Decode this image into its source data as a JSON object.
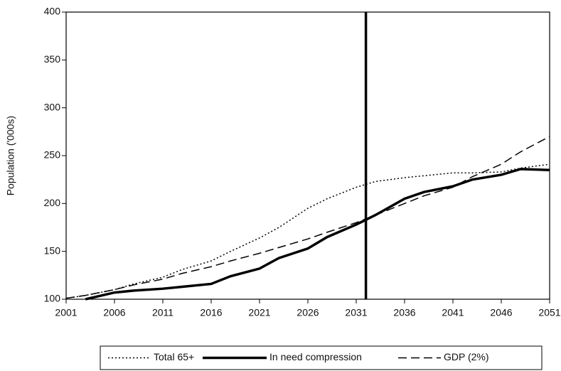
{
  "chart_data": {
    "type": "line",
    "y_label": "Population ('000s)",
    "x": [
      2001,
      2003,
      2006,
      2008,
      2011,
      2013,
      2016,
      2018,
      2021,
      2023,
      2026,
      2028,
      2031,
      2033,
      2036,
      2038,
      2041,
      2043,
      2046,
      2048,
      2051
    ],
    "series": [
      {
        "name": "Total 65+",
        "color": "#000000",
        "style": "dotted",
        "width": 1.5,
        "values": [
          101,
          104,
          110,
          116,
          123,
          131,
          140,
          150,
          164,
          175,
          195,
          205,
          217,
          223,
          227,
          229,
          232,
          232,
          233,
          237,
          241
        ]
      },
      {
        "name": "In need compression",
        "color": "#000000",
        "style": "solid",
        "width": 3.5,
        "values": [
          null,
          100,
          107,
          109,
          111,
          113,
          116,
          124,
          132,
          143,
          153,
          165,
          178,
          188,
          205,
          212,
          218,
          225,
          230,
          236,
          235
        ]
      },
      {
        "name": "GDP (2%)",
        "color": "#000000",
        "style": "dashed",
        "width": 1.5,
        "values": [
          101,
          104,
          110,
          115,
          121,
          127,
          134,
          140,
          148,
          154,
          163,
          170,
          180,
          188,
          200,
          208,
          217,
          228,
          241,
          254,
          270
        ]
      }
    ],
    "vline": 2032,
    "xlim": [
      2001,
      2051
    ],
    "xticks": [
      2001,
      2006,
      2011,
      2016,
      2021,
      2026,
      2031,
      2036,
      2041,
      2046,
      2051
    ],
    "ylim": [
      100,
      400
    ],
    "yticks": [
      100,
      150,
      200,
      250,
      300,
      350,
      400
    ],
    "legend": "bottom"
  }
}
